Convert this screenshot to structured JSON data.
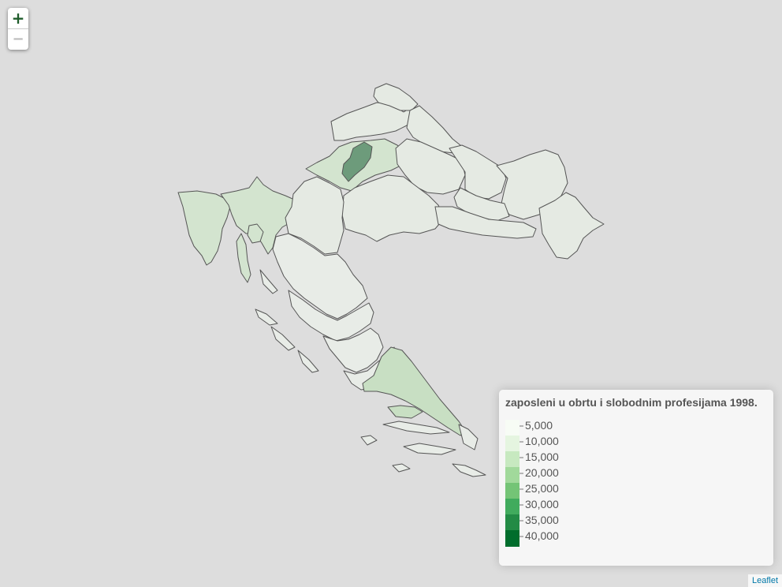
{
  "map": {
    "region_colors": {
      "very_light": "#e8ece7",
      "light": "#dbe7d7",
      "medium_light": "#c6e1c0",
      "dark": "#6a9c7a",
      "border": "#555555",
      "ocean": "#dddddd"
    }
  },
  "controls": {
    "zoom_in_label": "+",
    "zoom_out_label": "−"
  },
  "legend": {
    "title": "zaposleni u obrtu i slobodnim profesijama 1998.",
    "labels": [
      "5,000",
      "10,000",
      "15,000",
      "20,000",
      "25,000",
      "30,000",
      "35,000",
      "40,000"
    ],
    "colors": [
      "#f7fcf5",
      "#e5f5e0",
      "#c7e9c0",
      "#a1d99b",
      "#74c476",
      "#41ab5d",
      "#238b45",
      "#006d2c"
    ]
  },
  "attribution": {
    "text": "Leaflet"
  }
}
